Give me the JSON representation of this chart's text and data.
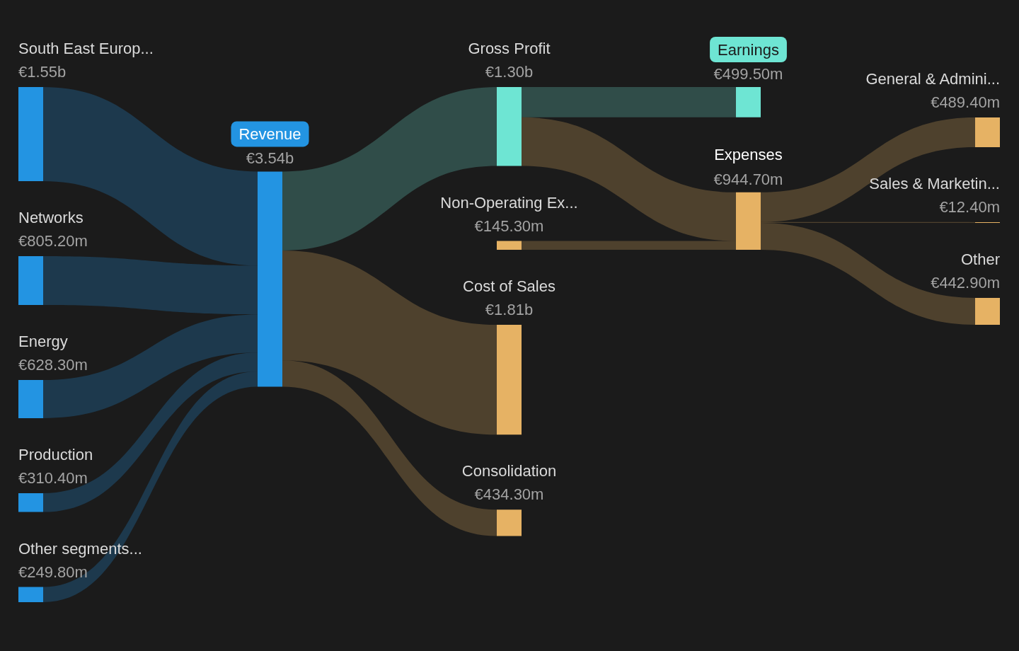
{
  "chart_data": {
    "type": "other",
    "categories": [
      "South East Europ...",
      "Networks",
      "Energy",
      "Production",
      "Other segments...",
      "Revenue",
      "Gross Profit",
      "Non-Operating Ex...",
      "Cost of Sales",
      "Consolidation",
      "Earnings",
      "Expenses",
      "General & Admini...",
      "Sales & Marketin...",
      "Other"
    ],
    "values": [
      1.55,
      805.2,
      628.3,
      310.4,
      249.8,
      3.54,
      1.3,
      145.3,
      1.81,
      434.3,
      499.5,
      944.7,
      489.4,
      12.4,
      442.9
    ],
    "value_labels": [
      "€1.55b",
      "€805.20m",
      "€628.30m",
      "€310.40m",
      "€249.80m",
      "€3.54b",
      "€1.30b",
      "€145.30m",
      "€1.81b",
      "€434.30m",
      "€499.50m",
      "€944.70m",
      "€489.40m",
      "€12.40m",
      "€442.90m"
    ],
    "colors": [
      "#2394e2",
      "#2394e2",
      "#2394e2",
      "#2394e2",
      "#2394e2",
      "#2394e2",
      "#6ee5d3",
      "#e6b264",
      "#e6b264",
      "#e6b264",
      "#6ee5d3",
      "#e6b264",
      "#e6b264",
      "#e6b264",
      "#e6b264"
    ]
  }
}
